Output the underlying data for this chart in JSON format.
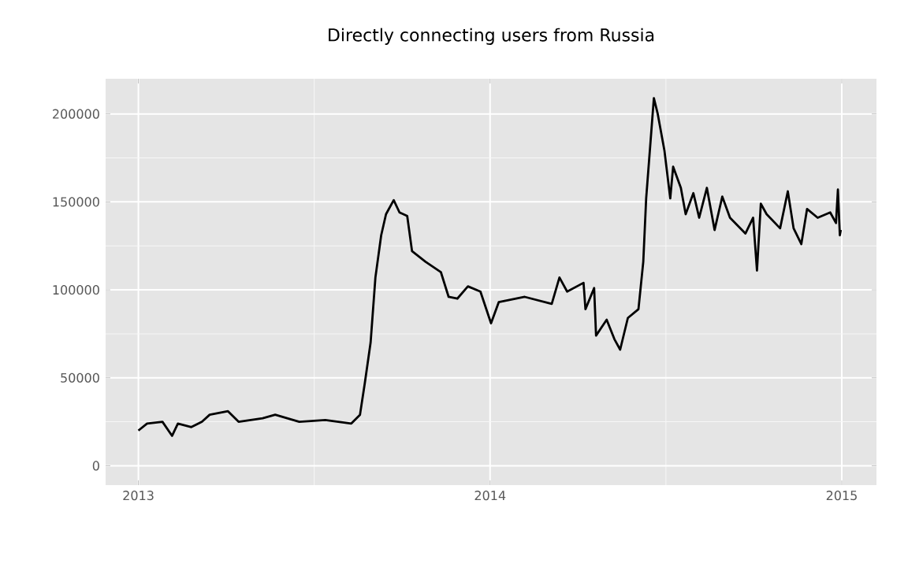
{
  "chart_data": {
    "type": "line",
    "title": "Directly connecting users from Russia",
    "x": [
      "2013-01-01",
      "2013-01-10",
      "2013-01-26",
      "2013-02-05",
      "2013-02-11",
      "2013-02-25",
      "2013-03-08",
      "2013-03-16",
      "2013-04-04",
      "2013-04-15",
      "2013-05-10",
      "2013-05-23",
      "2013-06-17",
      "2013-07-14",
      "2013-08-10",
      "2013-08-19",
      "2013-08-24",
      "2013-08-30",
      "2013-09-04",
      "2013-09-10",
      "2013-09-15",
      "2013-09-23",
      "2013-09-29",
      "2013-10-07",
      "2013-10-12",
      "2013-10-26",
      "2013-11-11",
      "2013-11-19",
      "2013-11-28",
      "2013-12-09",
      "2013-12-22",
      "2014-01-02",
      "2014-01-10",
      "2014-02-06",
      "2014-03-06",
      "2014-03-14",
      "2014-03-22",
      "2014-04-08",
      "2014-04-10",
      "2014-04-19",
      "2014-04-21",
      "2014-05-02",
      "2014-05-10",
      "2014-05-16",
      "2014-05-24",
      "2014-06-04",
      "2014-06-09",
      "2014-06-12",
      "2014-06-20",
      "2014-06-24",
      "2014-07-01",
      "2014-07-07",
      "2014-07-10",
      "2014-07-18",
      "2014-07-23",
      "2014-07-31",
      "2014-08-06",
      "2014-08-14",
      "2014-08-22",
      "2014-08-30",
      "2014-09-07",
      "2014-09-23",
      "2014-10-01",
      "2014-10-05",
      "2014-10-09",
      "2014-10-15",
      "2014-10-29",
      "2014-11-06",
      "2014-11-12",
      "2014-11-20",
      "2014-11-26",
      "2014-12-07",
      "2014-12-20",
      "2014-12-26",
      "2014-12-28",
      "2014-12-30",
      "2014-12-31"
    ],
    "series": [
      {
        "color": "#000000",
        "values": [
          20000,
          24000,
          25000,
          17000,
          24000,
          22000,
          25000,
          29000,
          31000,
          25000,
          27000,
          29000,
          25000,
          26000,
          24000,
          29000,
          47000,
          70000,
          107000,
          131000,
          143000,
          151000,
          144000,
          142000,
          122000,
          116000,
          110000,
          96000,
          95000,
          102000,
          99000,
          81000,
          93000,
          96000,
          92000,
          107000,
          99000,
          104000,
          89000,
          101000,
          74000,
          83000,
          72000,
          66000,
          84000,
          89000,
          116000,
          152000,
          209000,
          200000,
          179000,
          152000,
          170000,
          158000,
          143000,
          155000,
          141000,
          158000,
          134000,
          153000,
          141000,
          132000,
          141000,
          111000,
          149000,
          143000,
          135000,
          156000,
          135000,
          126000,
          146000,
          141000,
          144000,
          138000,
          157000,
          131000,
          134000
        ]
      }
    ],
    "xlim": [
      "2012-11-28",
      "2015-02-06"
    ],
    "xticks": [
      {
        "value": "2013-01-01",
        "label": "2013"
      },
      {
        "value": "2014-01-01",
        "label": "2014"
      },
      {
        "value": "2015-01-01",
        "label": "2015"
      }
    ],
    "ylim": [
      -11000,
      220000
    ],
    "yticks": [
      0,
      50000,
      100000,
      150000,
      200000
    ],
    "grid": true,
    "marker": "none",
    "line_style": "solid"
  }
}
